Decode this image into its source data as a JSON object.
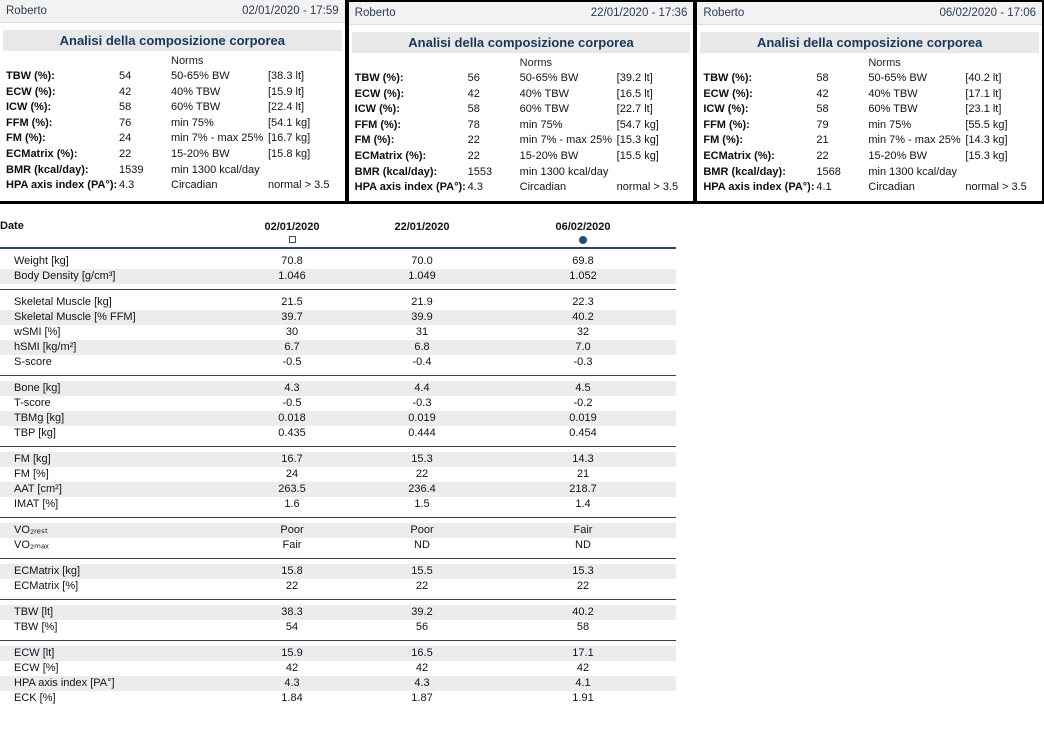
{
  "colors": {
    "accent_navy": "#17375E",
    "marker_blue": "#1F4E79",
    "separator_line": "#31435F",
    "header_band_bg": "#F2F2F2",
    "title_band_bg": "#E8E8E8",
    "zebra_row_bg": "#ECECEC",
    "panel_border": "#000000"
  },
  "panels": [
    {
      "patient": "Roberto",
      "datetime": "02/01/2020 - 17:59",
      "title": "Analisi della composizione corporea",
      "norms_header": "Norms",
      "rows": [
        {
          "label": "TBW (%):",
          "value": "54",
          "norm": "50-65% BW",
          "extra": "[38.3 lt]"
        },
        {
          "label": "ECW (%):",
          "value": "42",
          "norm": "40% TBW",
          "extra": "[15.9 lt]"
        },
        {
          "label": "ICW (%):",
          "value": "58",
          "norm": "60% TBW",
          "extra": "[22.4 lt]"
        },
        {
          "label": "FFM (%):",
          "value": "76",
          "norm": "min 75%",
          "extra": "[54.1 kg]"
        },
        {
          "label": "FM (%):",
          "value": "24",
          "norm": "min 7% - max 25%",
          "extra": "[16.7 kg]"
        },
        {
          "label": "ECMatrix (%):",
          "value": "22",
          "norm": "15-20% BW",
          "extra": "[15.8 kg]"
        },
        {
          "label": "BMR (kcal/day):",
          "value": "1539",
          "norm": "min 1300 kcal/day",
          "extra": ""
        },
        {
          "label": "HPA axis index (PA°):",
          "value": "4.3",
          "norm": "Circadian",
          "extra": "normal > 3.5"
        }
      ]
    },
    {
      "patient": "Roberto",
      "datetime": "22/01/2020 - 17:36",
      "title": "Analisi della composizione corporea",
      "norms_header": "Norms",
      "rows": [
        {
          "label": "TBW (%):",
          "value": "56",
          "norm": "50-65% BW",
          "extra": "[39.2 lt]"
        },
        {
          "label": "ECW (%):",
          "value": "42",
          "norm": "40% TBW",
          "extra": "[16.5 lt]"
        },
        {
          "label": "ICW (%):",
          "value": "58",
          "norm": "60% TBW",
          "extra": "[22.7 lt]"
        },
        {
          "label": "FFM (%):",
          "value": "78",
          "norm": "min 75%",
          "extra": "[54.7 kg]"
        },
        {
          "label": "FM (%):",
          "value": "22",
          "norm": "min 7% - max 25%",
          "extra": "[15.3 kg]"
        },
        {
          "label": "ECMatrix (%):",
          "value": "22",
          "norm": "15-20% BW",
          "extra": "[15.5 kg]"
        },
        {
          "label": "BMR (kcal/day):",
          "value": "1553",
          "norm": "min 1300 kcal/day",
          "extra": ""
        },
        {
          "label": "HPA axis index (PA°):",
          "value": "4.3",
          "norm": "Circadian",
          "extra": "normal > 3.5"
        }
      ]
    },
    {
      "patient": "Roberto",
      "datetime": "06/02/2020 - 17:06",
      "title": "Analisi della composizione corporea",
      "norms_header": "Norms",
      "rows": [
        {
          "label": "TBW (%):",
          "value": "58",
          "norm": "50-65% BW",
          "extra": "[40.2 lt]"
        },
        {
          "label": "ECW (%):",
          "value": "42",
          "norm": "40% TBW",
          "extra": "[17.1 lt]"
        },
        {
          "label": "ICW (%):",
          "value": "58",
          "norm": "60% TBW",
          "extra": "[23.1 lt]"
        },
        {
          "label": "FFM (%):",
          "value": "79",
          "norm": "min 75%",
          "extra": "[55.5 kg]"
        },
        {
          "label": "FM (%):",
          "value": "21",
          "norm": "min 7% - max 25%",
          "extra": "[14.3 kg]"
        },
        {
          "label": "ECMatrix (%):",
          "value": "22",
          "norm": "15-20% BW",
          "extra": "[15.3 kg]"
        },
        {
          "label": "BMR (kcal/day):",
          "value": "1568",
          "norm": "min 1300 kcal/day",
          "extra": ""
        },
        {
          "label": "HPA axis index (PA°):",
          "value": "4.1",
          "norm": "Circadian",
          "extra": "normal > 3.5"
        }
      ]
    }
  ],
  "comparison_table": {
    "date_label": "Date",
    "columns": [
      {
        "date": "02/01/2020",
        "marker": "square-outline"
      },
      {
        "date": "22/01/2020",
        "marker": "none"
      },
      {
        "date": "06/02/2020",
        "marker": "circle-filled"
      }
    ],
    "groups": [
      {
        "rows": [
          {
            "label": "Weight [kg]",
            "values": [
              "70.8",
              "70.0",
              "69.8"
            ]
          },
          {
            "label": "Body Density [g/cm³]",
            "values": [
              "1.046",
              "1.049",
              "1.052"
            ]
          }
        ]
      },
      {
        "rows": [
          {
            "label": "Skeletal Muscle [kg]",
            "values": [
              "21.5",
              "21.9",
              "22.3"
            ]
          },
          {
            "label": "Skeletal Muscle [% FFM]",
            "values": [
              "39.7",
              "39.9",
              "40.2"
            ]
          },
          {
            "label": "wSMI [%]",
            "values": [
              "30",
              "31",
              "32"
            ]
          },
          {
            "label": "hSMI [kg/m²]",
            "values": [
              "6.7",
              "6.8",
              "7.0"
            ]
          },
          {
            "label": "S-score",
            "values": [
              "-0.5",
              "-0.4",
              "-0.3"
            ]
          }
        ]
      },
      {
        "rows": [
          {
            "label": "Bone [kg]",
            "values": [
              "4.3",
              "4.4",
              "4.5"
            ]
          },
          {
            "label": "T-score",
            "values": [
              "-0.5",
              "-0.3",
              "-0.2"
            ]
          },
          {
            "label": "TBMg [kg]",
            "values": [
              "0.018",
              "0.019",
              "0.019"
            ]
          },
          {
            "label": "TBP [kg]",
            "values": [
              "0.435",
              "0.444",
              "0.454"
            ]
          }
        ]
      },
      {
        "rows": [
          {
            "label": "FM [kg]",
            "values": [
              "16.7",
              "15.3",
              "14.3"
            ]
          },
          {
            "label": "FM [%]",
            "values": [
              "24",
              "22",
              "21"
            ]
          },
          {
            "label": "AAT [cm²]",
            "values": [
              "263.5",
              "236.4",
              "218.7"
            ]
          },
          {
            "label": "IMAT [%]",
            "values": [
              "1.6",
              "1.5",
              "1.4"
            ]
          }
        ]
      },
      {
        "rows": [
          {
            "label": "VO₂ᵣₑₛₜ",
            "values": [
              "Poor",
              "Poor",
              "Fair"
            ]
          },
          {
            "label": "VO₂ₘₐₓ",
            "values": [
              "Fair",
              "ND",
              "ND"
            ]
          }
        ]
      },
      {
        "rows": [
          {
            "label": "ECMatrix [kg]",
            "values": [
              "15.8",
              "15.5",
              "15.3"
            ]
          },
          {
            "label": "ECMatrix [%]",
            "values": [
              "22",
              "22",
              "22"
            ]
          }
        ]
      },
      {
        "rows": [
          {
            "label": "TBW [lt]",
            "values": [
              "38.3",
              "39.2",
              "40.2"
            ]
          },
          {
            "label": "TBW [%]",
            "values": [
              "54",
              "56",
              "58"
            ]
          }
        ]
      },
      {
        "rows": [
          {
            "label": "ECW [lt]",
            "values": [
              "15.9",
              "16.5",
              "17.1"
            ]
          },
          {
            "label": "ECW [%]",
            "values": [
              "42",
              "42",
              "42"
            ]
          },
          {
            "label": "HPA axis index [PA°]",
            "values": [
              "4.3",
              "4.3",
              "4.1"
            ]
          },
          {
            "label": "ECK [%]",
            "values": [
              "1.84",
              "1.87",
              "1.91"
            ]
          }
        ]
      }
    ]
  }
}
